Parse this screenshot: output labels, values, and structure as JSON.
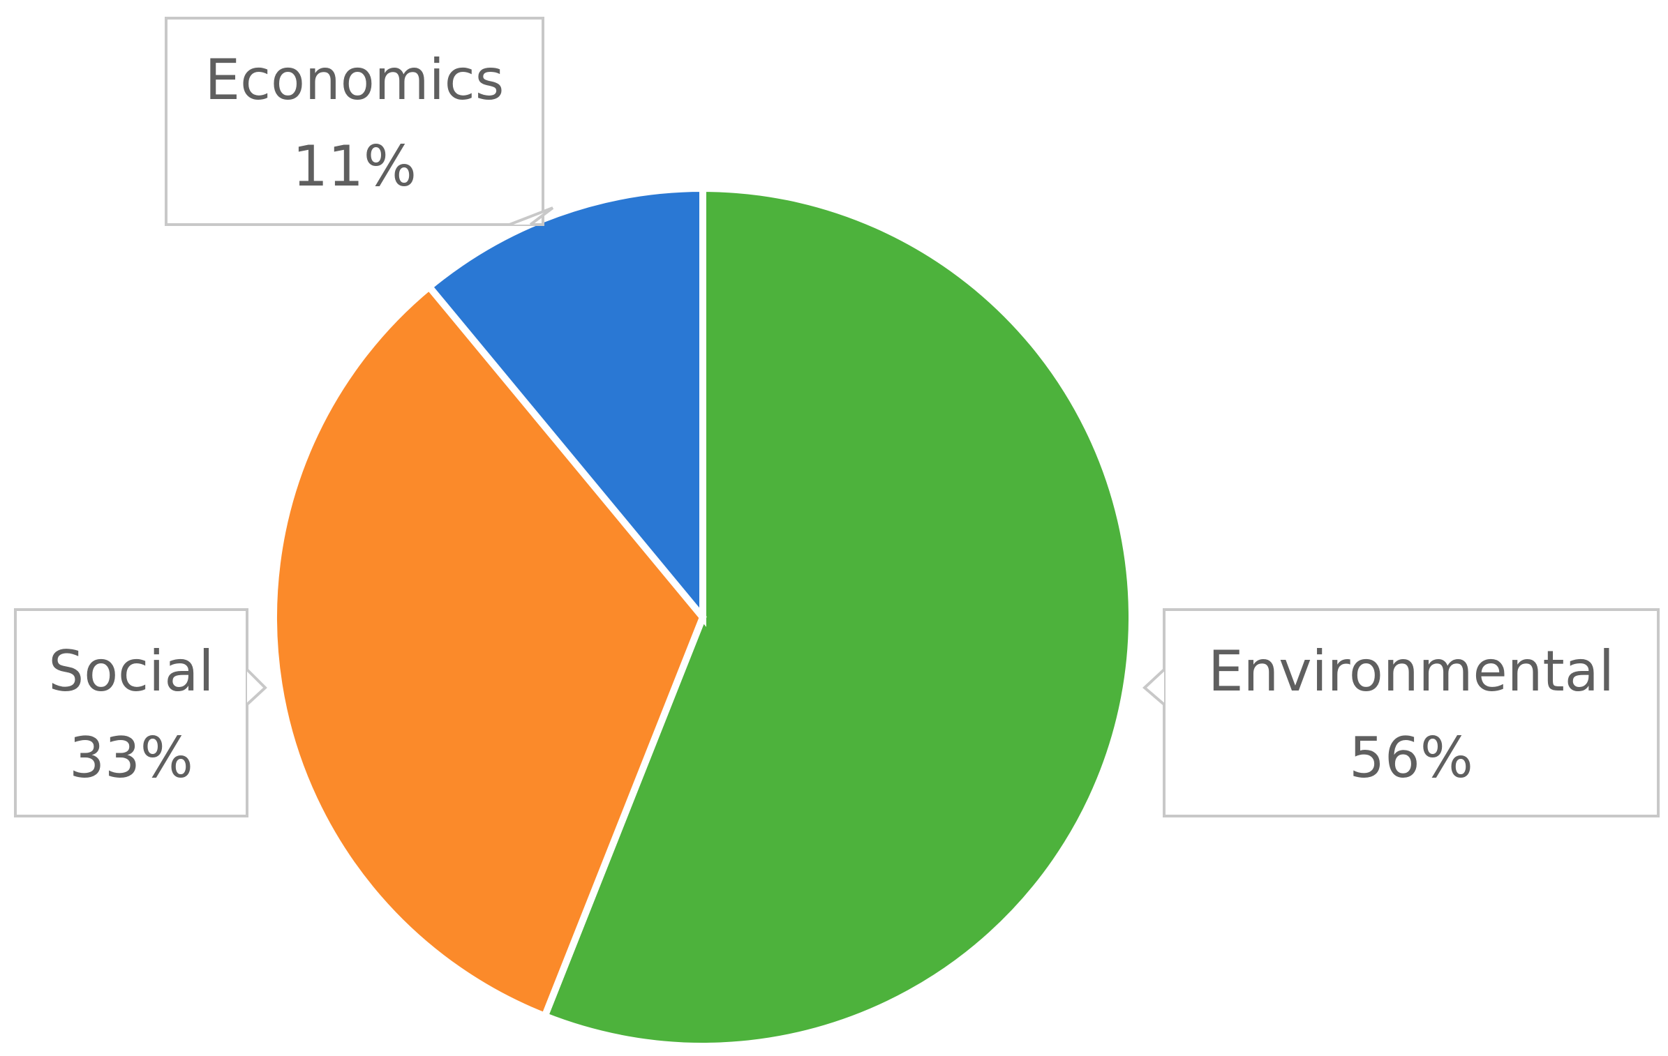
{
  "chart_data": {
    "type": "pie",
    "title": "",
    "slices": [
      {
        "label": "Environmental",
        "value": 56,
        "display": "56%",
        "color": "#4db23c"
      },
      {
        "label": "Social",
        "value": 33,
        "display": "33%",
        "color": "#fb8a2a"
      },
      {
        "label": "Economics",
        "value": 11,
        "display": "11%",
        "color": "#2a78d4"
      }
    ],
    "start_angle_deg": 0,
    "direction": "clockwise",
    "legend": "none",
    "labels": "callouts"
  }
}
